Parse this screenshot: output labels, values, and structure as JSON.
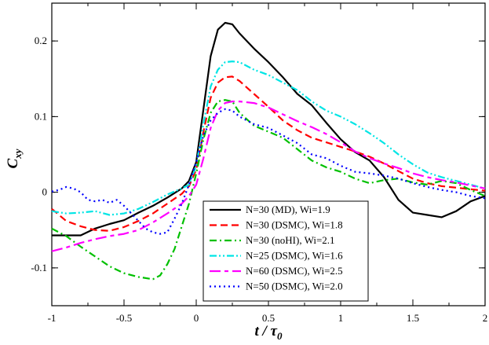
{
  "chart_data": {
    "type": "line",
    "xlabel_main": "t / τ",
    "xlabel_sub": "0",
    "ylabel_main": "C",
    "ylabel_sub": "xy",
    "xlim": [
      -1,
      2
    ],
    "ylim": [
      -0.15,
      0.25
    ],
    "xticks": [
      {
        "v": -1,
        "label": "-1"
      },
      {
        "v": -0.5,
        "label": "-0.5"
      },
      {
        "v": 0,
        "label": "0"
      },
      {
        "v": 0.5,
        "label": "0.5"
      },
      {
        "v": 1,
        "label": "1"
      },
      {
        "v": 1.5,
        "label": "1.5"
      },
      {
        "v": 2,
        "label": "2"
      }
    ],
    "yticks": [
      {
        "v": -0.1,
        "label": "-0.1"
      },
      {
        "v": 0,
        "label": "0"
      },
      {
        "v": 0.1,
        "label": "0.1"
      },
      {
        "v": 0.2,
        "label": "0.2"
      }
    ],
    "legend_position": "bottom-center",
    "series": [
      {
        "name": "N=30 (MD), Wi=1.9",
        "color": "#000000",
        "dash": "solid",
        "points": [
          [
            -1,
            -0.057
          ],
          [
            -0.9,
            -0.057
          ],
          [
            -0.8,
            -0.057
          ],
          [
            -0.7,
            -0.048
          ],
          [
            -0.6,
            -0.042
          ],
          [
            -0.5,
            -0.037
          ],
          [
            -0.4,
            -0.027
          ],
          [
            -0.3,
            -0.018
          ],
          [
            -0.2,
            -0.007
          ],
          [
            -0.1,
            0.005
          ],
          [
            -0.05,
            0.015
          ],
          [
            0,
            0.04
          ],
          [
            0.05,
            0.11
          ],
          [
            0.1,
            0.18
          ],
          [
            0.15,
            0.215
          ],
          [
            0.2,
            0.224
          ],
          [
            0.25,
            0.222
          ],
          [
            0.3,
            0.21
          ],
          [
            0.4,
            0.19
          ],
          [
            0.5,
            0.172
          ],
          [
            0.6,
            0.152
          ],
          [
            0.7,
            0.13
          ],
          [
            0.8,
            0.115
          ],
          [
            0.9,
            0.092
          ],
          [
            1.0,
            0.07
          ],
          [
            1.1,
            0.053
          ],
          [
            1.2,
            0.042
          ],
          [
            1.3,
            0.02
          ],
          [
            1.4,
            -0.01
          ],
          [
            1.5,
            -0.027
          ],
          [
            1.6,
            -0.03
          ],
          [
            1.7,
            -0.033
          ],
          [
            1.8,
            -0.025
          ],
          [
            1.9,
            -0.012
          ],
          [
            2.0,
            -0.005
          ]
        ]
      },
      {
        "name": "N=30 (DSMC), Wi=1.8",
        "color": "#ff0000",
        "dash": "long-dash",
        "points": [
          [
            -1,
            -0.022
          ],
          [
            -0.9,
            -0.038
          ],
          [
            -0.8,
            -0.045
          ],
          [
            -0.7,
            -0.05
          ],
          [
            -0.6,
            -0.051
          ],
          [
            -0.5,
            -0.046
          ],
          [
            -0.4,
            -0.038
          ],
          [
            -0.3,
            -0.028
          ],
          [
            -0.2,
            -0.015
          ],
          [
            -0.1,
            -0.002
          ],
          [
            -0.05,
            0.008
          ],
          [
            0,
            0.03
          ],
          [
            0.05,
            0.08
          ],
          [
            0.1,
            0.125
          ],
          [
            0.15,
            0.145
          ],
          [
            0.2,
            0.152
          ],
          [
            0.25,
            0.153
          ],
          [
            0.3,
            0.147
          ],
          [
            0.4,
            0.13
          ],
          [
            0.5,
            0.113
          ],
          [
            0.6,
            0.095
          ],
          [
            0.7,
            0.082
          ],
          [
            0.8,
            0.072
          ],
          [
            0.9,
            0.066
          ],
          [
            1.0,
            0.06
          ],
          [
            1.1,
            0.054
          ],
          [
            1.2,
            0.047
          ],
          [
            1.3,
            0.038
          ],
          [
            1.4,
            0.028
          ],
          [
            1.5,
            0.018
          ],
          [
            1.6,
            0.012
          ],
          [
            1.7,
            0.008
          ],
          [
            1.8,
            0.006
          ],
          [
            1.9,
            0.004
          ],
          [
            2.0,
            0.002
          ]
        ]
      },
      {
        "name": "N=30 (noHI), Wi=2.1",
        "color": "#00c000",
        "dash": "dash-dot",
        "points": [
          [
            -1,
            -0.048
          ],
          [
            -0.9,
            -0.058
          ],
          [
            -0.8,
            -0.072
          ],
          [
            -0.7,
            -0.085
          ],
          [
            -0.6,
            -0.098
          ],
          [
            -0.5,
            -0.107
          ],
          [
            -0.4,
            -0.112
          ],
          [
            -0.3,
            -0.115
          ],
          [
            -0.25,
            -0.11
          ],
          [
            -0.2,
            -0.095
          ],
          [
            -0.15,
            -0.075
          ],
          [
            -0.1,
            -0.045
          ],
          [
            -0.05,
            -0.015
          ],
          [
            0,
            0.025
          ],
          [
            0.05,
            0.07
          ],
          [
            0.1,
            0.105
          ],
          [
            0.15,
            0.12
          ],
          [
            0.2,
            0.122
          ],
          [
            0.25,
            0.12
          ],
          [
            0.3,
            0.105
          ],
          [
            0.4,
            0.088
          ],
          [
            0.5,
            0.08
          ],
          [
            0.6,
            0.072
          ],
          [
            0.7,
            0.057
          ],
          [
            0.8,
            0.042
          ],
          [
            0.9,
            0.033
          ],
          [
            1.0,
            0.027
          ],
          [
            1.1,
            0.018
          ],
          [
            1.2,
            0.012
          ],
          [
            1.3,
            0.016
          ],
          [
            1.4,
            0.018
          ],
          [
            1.5,
            0.013
          ],
          [
            1.6,
            0.01
          ],
          [
            1.7,
            0.015
          ],
          [
            1.8,
            0.012
          ],
          [
            1.9,
            0.003
          ],
          [
            2.0,
            -0.005
          ]
        ]
      },
      {
        "name": "N=25 (DSMC), Wi=1.6",
        "color": "#00e5e5",
        "dash": "dash-dot-dot",
        "points": [
          [
            -1,
            -0.025
          ],
          [
            -0.9,
            -0.028
          ],
          [
            -0.8,
            -0.027
          ],
          [
            -0.7,
            -0.025
          ],
          [
            -0.6,
            -0.03
          ],
          [
            -0.5,
            -0.028
          ],
          [
            -0.4,
            -0.022
          ],
          [
            -0.3,
            -0.013
          ],
          [
            -0.2,
            -0.003
          ],
          [
            -0.1,
            0.005
          ],
          [
            -0.05,
            0.01
          ],
          [
            0,
            0.035
          ],
          [
            0.05,
            0.09
          ],
          [
            0.1,
            0.14
          ],
          [
            0.15,
            0.162
          ],
          [
            0.2,
            0.172
          ],
          [
            0.25,
            0.173
          ],
          [
            0.3,
            0.172
          ],
          [
            0.4,
            0.162
          ],
          [
            0.5,
            0.155
          ],
          [
            0.6,
            0.145
          ],
          [
            0.7,
            0.135
          ],
          [
            0.8,
            0.12
          ],
          [
            0.9,
            0.108
          ],
          [
            1.0,
            0.1
          ],
          [
            1.1,
            0.09
          ],
          [
            1.2,
            0.078
          ],
          [
            1.3,
            0.065
          ],
          [
            1.4,
            0.05
          ],
          [
            1.5,
            0.037
          ],
          [
            1.6,
            0.026
          ],
          [
            1.7,
            0.02
          ],
          [
            1.8,
            0.015
          ],
          [
            1.9,
            0.01
          ],
          [
            2.0,
            0.005
          ]
        ]
      },
      {
        "name": "N=60 (DSMC), Wi=2.5",
        "color": "#ff00ff",
        "dash": "long-dash-short",
        "points": [
          [
            -1,
            -0.078
          ],
          [
            -0.9,
            -0.073
          ],
          [
            -0.8,
            -0.067
          ],
          [
            -0.7,
            -0.062
          ],
          [
            -0.6,
            -0.058
          ],
          [
            -0.5,
            -0.055
          ],
          [
            -0.4,
            -0.05
          ],
          [
            -0.3,
            -0.04
          ],
          [
            -0.2,
            -0.028
          ],
          [
            -0.1,
            -0.015
          ],
          [
            -0.05,
            -0.005
          ],
          [
            0,
            0.01
          ],
          [
            0.05,
            0.045
          ],
          [
            0.1,
            0.085
          ],
          [
            0.15,
            0.108
          ],
          [
            0.2,
            0.118
          ],
          [
            0.25,
            0.12
          ],
          [
            0.3,
            0.12
          ],
          [
            0.4,
            0.118
          ],
          [
            0.5,
            0.112
          ],
          [
            0.6,
            0.103
          ],
          [
            0.7,
            0.094
          ],
          [
            0.8,
            0.086
          ],
          [
            0.9,
            0.077
          ],
          [
            1.0,
            0.066
          ],
          [
            1.1,
            0.054
          ],
          [
            1.2,
            0.045
          ],
          [
            1.3,
            0.038
          ],
          [
            1.4,
            0.032
          ],
          [
            1.5,
            0.025
          ],
          [
            1.6,
            0.02
          ],
          [
            1.7,
            0.016
          ],
          [
            1.8,
            0.013
          ],
          [
            1.9,
            0.009
          ],
          [
            2.0,
            0.005
          ]
        ]
      },
      {
        "name": "N=50 (DSMC), Wi=2.0",
        "color": "#0000ff",
        "dash": "dotted",
        "points": [
          [
            -1,
            0.001
          ],
          [
            -0.95,
            0.003
          ],
          [
            -0.9,
            0.007
          ],
          [
            -0.85,
            0.005
          ],
          [
            -0.8,
            0.0
          ],
          [
            -0.75,
            -0.01
          ],
          [
            -0.7,
            -0.012
          ],
          [
            -0.65,
            -0.01
          ],
          [
            -0.6,
            -0.014
          ],
          [
            -0.55,
            -0.01
          ],
          [
            -0.5,
            -0.018
          ],
          [
            -0.45,
            -0.028
          ],
          [
            -0.4,
            -0.038
          ],
          [
            -0.35,
            -0.048
          ],
          [
            -0.3,
            -0.053
          ],
          [
            -0.25,
            -0.055
          ],
          [
            -0.2,
            -0.053
          ],
          [
            -0.15,
            -0.035
          ],
          [
            -0.1,
            -0.015
          ],
          [
            -0.05,
            0.01
          ],
          [
            0,
            0.04
          ],
          [
            0.05,
            0.075
          ],
          [
            0.1,
            0.095
          ],
          [
            0.15,
            0.105
          ],
          [
            0.2,
            0.11
          ],
          [
            0.25,
            0.108
          ],
          [
            0.3,
            0.1
          ],
          [
            0.4,
            0.09
          ],
          [
            0.5,
            0.085
          ],
          [
            0.6,
            0.075
          ],
          [
            0.7,
            0.065
          ],
          [
            0.8,
            0.05
          ],
          [
            0.9,
            0.045
          ],
          [
            1.0,
            0.035
          ],
          [
            1.1,
            0.027
          ],
          [
            1.2,
            0.025
          ],
          [
            1.3,
            0.022
          ],
          [
            1.4,
            0.018
          ],
          [
            1.5,
            0.012
          ],
          [
            1.6,
            0.007
          ],
          [
            1.7,
            0.003
          ],
          [
            1.8,
            0.0
          ],
          [
            1.9,
            -0.005
          ],
          [
            2.0,
            -0.008
          ]
        ]
      }
    ]
  }
}
